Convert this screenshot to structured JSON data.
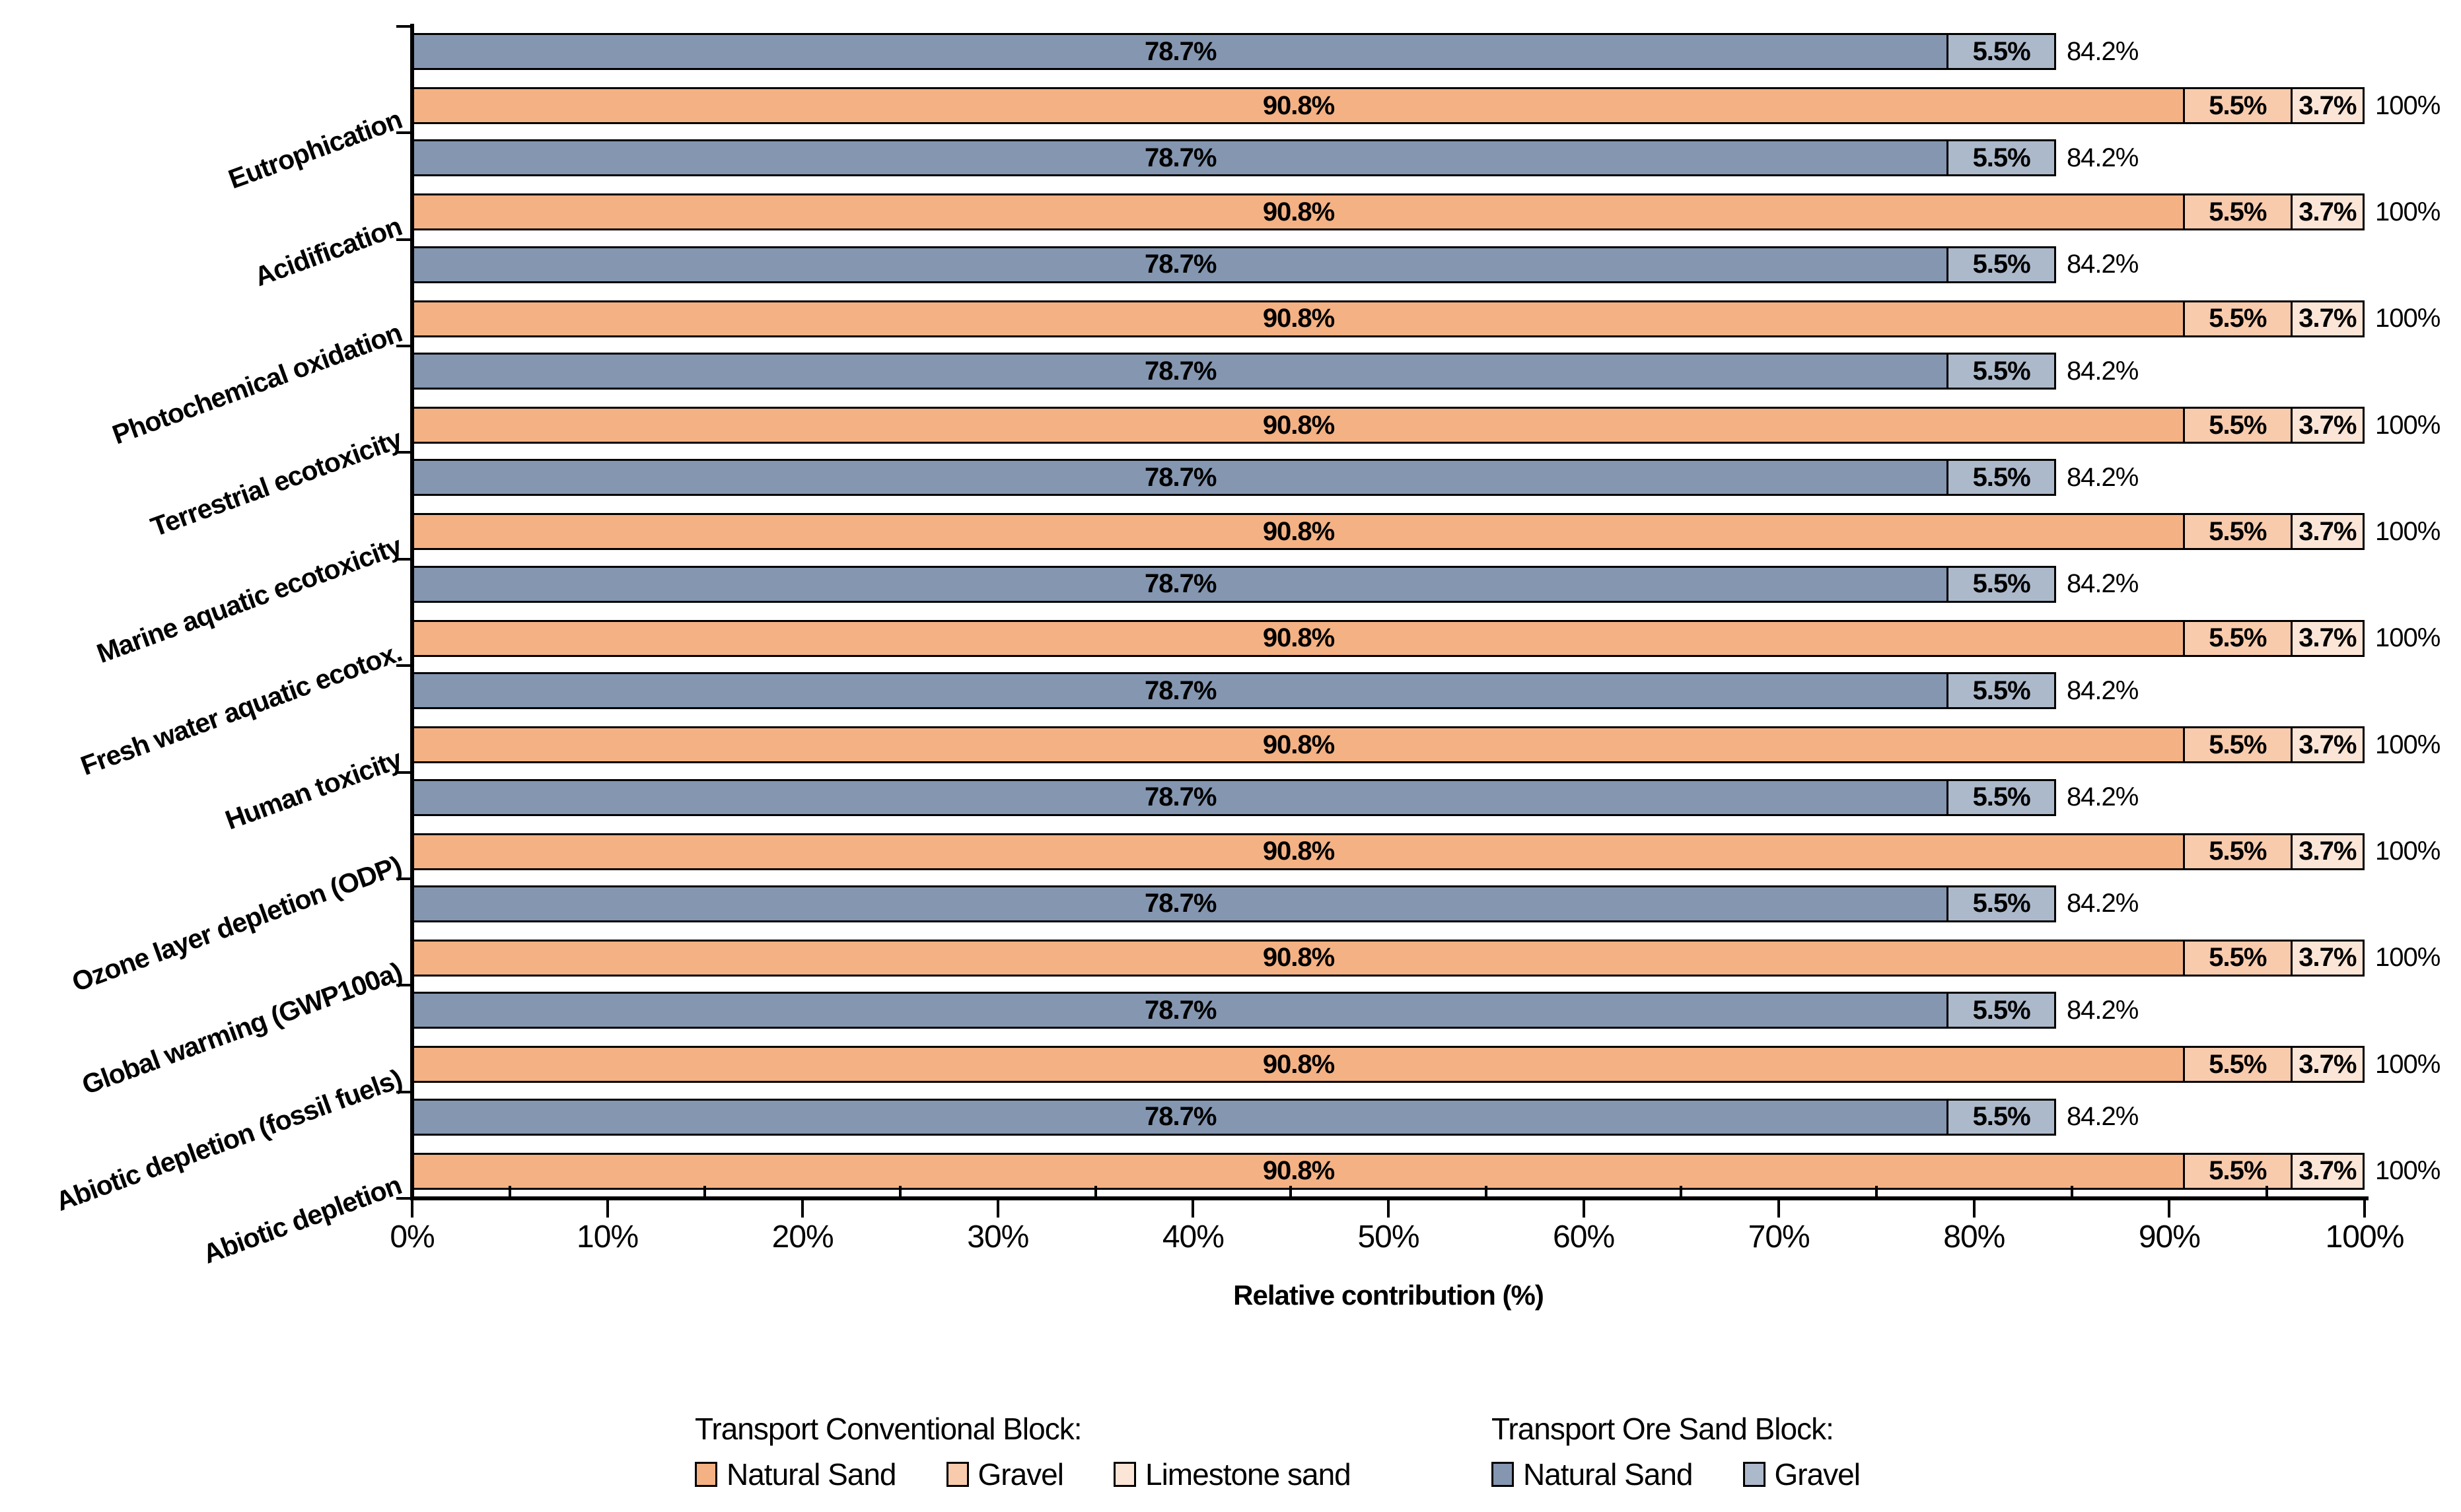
{
  "chart_data": {
    "type": "bar",
    "orientation": "horizontal",
    "stacked": true,
    "title": "",
    "xlabel": "Relative contribution (%)",
    "xlim": [
      0,
      100
    ],
    "grid": false,
    "legend_position": "bottom",
    "x_major_ticks": [
      {
        "pos": 0,
        "label": "0%"
      },
      {
        "pos": 10,
        "label": "10%"
      },
      {
        "pos": 20,
        "label": "20%"
      },
      {
        "pos": 30,
        "label": "30%"
      },
      {
        "pos": 40,
        "label": "40%"
      },
      {
        "pos": 50,
        "label": "50%"
      },
      {
        "pos": 60,
        "label": "60%"
      },
      {
        "pos": 70,
        "label": "70%"
      },
      {
        "pos": 80,
        "label": "80%"
      },
      {
        "pos": 90,
        "label": "90%"
      },
      {
        "pos": 100,
        "label": "100%"
      }
    ],
    "x_minor_ticks": [
      5,
      15,
      25,
      35,
      45,
      55,
      65,
      75,
      85,
      95
    ],
    "colors": {
      "conventional_natural_sand": "#F4B183",
      "conventional_gravel": "#F8CBAD",
      "conventional_limestone_sand": "#FBE5D6",
      "ore_sand_natural_sand": "#8496B0",
      "ore_sand_gravel": "#ACB9CA"
    },
    "categories": [
      "Eutrophication",
      "Acidification",
      "Photochemical oxidation",
      "Terrestrial ecotoxicity",
      "Marine aquatic ecotoxicity",
      "Fresh water aquatic ecotox.",
      "Human toxicity",
      "Ozone layer depletion (ODP)",
      "Global warming (GWP100a)",
      "Abiotic depletion (fossil fuels)",
      "Abiotic depletion"
    ],
    "rows": [
      {
        "category": "Eutrophication",
        "ore_sand_block": {
          "name": "Transport Ore Sand Block",
          "total": 84.2,
          "total_label": "84.2%",
          "segments": [
            {
              "name": "Natural Sand",
              "value": 78.7,
              "label": "78.7%",
              "color": "#8496B0"
            },
            {
              "name": "Gravel",
              "value": 5.5,
              "label": "5.5%",
              "color": "#ACB9CA"
            }
          ]
        },
        "conventional_block": {
          "name": "Transport Conventional Block",
          "total": 100,
          "total_label": "100%",
          "segments": [
            {
              "name": "Natural Sand",
              "value": 90.8,
              "label": "90.8%",
              "color": "#F4B183"
            },
            {
              "name": "Gravel",
              "value": 5.5,
              "label": "5.5%",
              "color": "#F8CBAD"
            },
            {
              "name": "Limestone sand",
              "value": 3.7,
              "label": "3.7%",
              "color": "#FBE5D6"
            }
          ]
        }
      },
      {
        "category": "Acidification",
        "ore_sand_block": {
          "name": "Transport Ore Sand Block",
          "total": 84.2,
          "total_label": "84.2%",
          "segments": [
            {
              "name": "Natural Sand",
              "value": 78.7,
              "label": "78.7%",
              "color": "#8496B0"
            },
            {
              "name": "Gravel",
              "value": 5.5,
              "label": "5.5%",
              "color": "#ACB9CA"
            }
          ]
        },
        "conventional_block": {
          "name": "Transport Conventional Block",
          "total": 100,
          "total_label": "100%",
          "segments": [
            {
              "name": "Natural Sand",
              "value": 90.8,
              "label": "90.8%",
              "color": "#F4B183"
            },
            {
              "name": "Gravel",
              "value": 5.5,
              "label": "5.5%",
              "color": "#F8CBAD"
            },
            {
              "name": "Limestone sand",
              "value": 3.7,
              "label": "3.7%",
              "color": "#FBE5D6"
            }
          ]
        }
      },
      {
        "category": "Photochemical oxidation",
        "ore_sand_block": {
          "name": "Transport Ore Sand Block",
          "total": 84.2,
          "total_label": "84.2%",
          "segments": [
            {
              "name": "Natural Sand",
              "value": 78.7,
              "label": "78.7%",
              "color": "#8496B0"
            },
            {
              "name": "Gravel",
              "value": 5.5,
              "label": "5.5%",
              "color": "#ACB9CA"
            }
          ]
        },
        "conventional_block": {
          "name": "Transport Conventional Block",
          "total": 100,
          "total_label": "100%",
          "segments": [
            {
              "name": "Natural Sand",
              "value": 90.8,
              "label": "90.8%",
              "color": "#F4B183"
            },
            {
              "name": "Gravel",
              "value": 5.5,
              "label": "5.5%",
              "color": "#F8CBAD"
            },
            {
              "name": "Limestone sand",
              "value": 3.7,
              "label": "3.7%",
              "color": "#FBE5D6"
            }
          ]
        }
      },
      {
        "category": "Terrestrial ecotoxicity",
        "ore_sand_block": {
          "name": "Transport Ore Sand Block",
          "total": 84.2,
          "total_label": "84.2%",
          "segments": [
            {
              "name": "Natural Sand",
              "value": 78.7,
              "label": "78.7%",
              "color": "#8496B0"
            },
            {
              "name": "Gravel",
              "value": 5.5,
              "label": "5.5%",
              "color": "#ACB9CA"
            }
          ]
        },
        "conventional_block": {
          "name": "Transport Conventional Block",
          "total": 100,
          "total_label": "100%",
          "segments": [
            {
              "name": "Natural Sand",
              "value": 90.8,
              "label": "90.8%",
              "color": "#F4B183"
            },
            {
              "name": "Gravel",
              "value": 5.5,
              "label": "5.5%",
              "color": "#F8CBAD"
            },
            {
              "name": "Limestone sand",
              "value": 3.7,
              "label": "3.7%",
              "color": "#FBE5D6"
            }
          ]
        }
      },
      {
        "category": "Marine aquatic ecotoxicity",
        "ore_sand_block": {
          "name": "Transport Ore Sand Block",
          "total": 84.2,
          "total_label": "84.2%",
          "segments": [
            {
              "name": "Natural Sand",
              "value": 78.7,
              "label": "78.7%",
              "color": "#8496B0"
            },
            {
              "name": "Gravel",
              "value": 5.5,
              "label": "5.5%",
              "color": "#ACB9CA"
            }
          ]
        },
        "conventional_block": {
          "name": "Transport Conventional Block",
          "total": 100,
          "total_label": "100%",
          "segments": [
            {
              "name": "Natural Sand",
              "value": 90.8,
              "label": "90.8%",
              "color": "#F4B183"
            },
            {
              "name": "Gravel",
              "value": 5.5,
              "label": "5.5%",
              "color": "#F8CBAD"
            },
            {
              "name": "Limestone sand",
              "value": 3.7,
              "label": "3.7%",
              "color": "#FBE5D6"
            }
          ]
        }
      },
      {
        "category": "Fresh water aquatic ecotox.",
        "ore_sand_block": {
          "name": "Transport Ore Sand Block",
          "total": 84.2,
          "total_label": "84.2%",
          "segments": [
            {
              "name": "Natural Sand",
              "value": 78.7,
              "label": "78.7%",
              "color": "#8496B0"
            },
            {
              "name": "Gravel",
              "value": 5.5,
              "label": "5.5%",
              "color": "#ACB9CA"
            }
          ]
        },
        "conventional_block": {
          "name": "Transport Conventional Block",
          "total": 100,
          "total_label": "100%",
          "segments": [
            {
              "name": "Natural Sand",
              "value": 90.8,
              "label": "90.8%",
              "color": "#F4B183"
            },
            {
              "name": "Gravel",
              "value": 5.5,
              "label": "5.5%",
              "color": "#F8CBAD"
            },
            {
              "name": "Limestone sand",
              "value": 3.7,
              "label": "3.7%",
              "color": "#FBE5D6"
            }
          ]
        }
      },
      {
        "category": "Human toxicity",
        "ore_sand_block": {
          "name": "Transport Ore Sand Block",
          "total": 84.2,
          "total_label": "84.2%",
          "segments": [
            {
              "name": "Natural Sand",
              "value": 78.7,
              "label": "78.7%",
              "color": "#8496B0"
            },
            {
              "name": "Gravel",
              "value": 5.5,
              "label": "5.5%",
              "color": "#ACB9CA"
            }
          ]
        },
        "conventional_block": {
          "name": "Transport Conventional Block",
          "total": 100,
          "total_label": "100%",
          "segments": [
            {
              "name": "Natural Sand",
              "value": 90.8,
              "label": "90.8%",
              "color": "#F4B183"
            },
            {
              "name": "Gravel",
              "value": 5.5,
              "label": "5.5%",
              "color": "#F8CBAD"
            },
            {
              "name": "Limestone sand",
              "value": 3.7,
              "label": "3.7%",
              "color": "#FBE5D6"
            }
          ]
        }
      },
      {
        "category": "Ozone layer depletion (ODP)",
        "ore_sand_block": {
          "name": "Transport Ore Sand Block",
          "total": 84.2,
          "total_label": "84.2%",
          "segments": [
            {
              "name": "Natural Sand",
              "value": 78.7,
              "label": "78.7%",
              "color": "#8496B0"
            },
            {
              "name": "Gravel",
              "value": 5.5,
              "label": "5.5%",
              "color": "#ACB9CA"
            }
          ]
        },
        "conventional_block": {
          "name": "Transport Conventional Block",
          "total": 100,
          "total_label": "100%",
          "segments": [
            {
              "name": "Natural Sand",
              "value": 90.8,
              "label": "90.8%",
              "color": "#F4B183"
            },
            {
              "name": "Gravel",
              "value": 5.5,
              "label": "5.5%",
              "color": "#F8CBAD"
            },
            {
              "name": "Limestone sand",
              "value": 3.7,
              "label": "3.7%",
              "color": "#FBE5D6"
            }
          ]
        }
      },
      {
        "category": "Global warming (GWP100a)",
        "ore_sand_block": {
          "name": "Transport Ore Sand Block",
          "total": 84.2,
          "total_label": "84.2%",
          "segments": [
            {
              "name": "Natural Sand",
              "value": 78.7,
              "label": "78.7%",
              "color": "#8496B0"
            },
            {
              "name": "Gravel",
              "value": 5.5,
              "label": "5.5%",
              "color": "#ACB9CA"
            }
          ]
        },
        "conventional_block": {
          "name": "Transport Conventional Block",
          "total": 100,
          "total_label": "100%",
          "segments": [
            {
              "name": "Natural Sand",
              "value": 90.8,
              "label": "90.8%",
              "color": "#F4B183"
            },
            {
              "name": "Gravel",
              "value": 5.5,
              "label": "5.5%",
              "color": "#F8CBAD"
            },
            {
              "name": "Limestone sand",
              "value": 3.7,
              "label": "3.7%",
              "color": "#FBE5D6"
            }
          ]
        }
      },
      {
        "category": "Abiotic depletion (fossil fuels)",
        "ore_sand_block": {
          "name": "Transport Ore Sand Block",
          "total": 84.2,
          "total_label": "84.2%",
          "segments": [
            {
              "name": "Natural Sand",
              "value": 78.7,
              "label": "78.7%",
              "color": "#8496B0"
            },
            {
              "name": "Gravel",
              "value": 5.5,
              "label": "5.5%",
              "color": "#ACB9CA"
            }
          ]
        },
        "conventional_block": {
          "name": "Transport Conventional Block",
          "total": 100,
          "total_label": "100%",
          "segments": [
            {
              "name": "Natural Sand",
              "value": 90.8,
              "label": "90.8%",
              "color": "#F4B183"
            },
            {
              "name": "Gravel",
              "value": 5.5,
              "label": "5.5%",
              "color": "#F8CBAD"
            },
            {
              "name": "Limestone sand",
              "value": 3.7,
              "label": "3.7%",
              "color": "#FBE5D6"
            }
          ]
        }
      },
      {
        "category": "Abiotic depletion",
        "ore_sand_block": {
          "name": "Transport Ore Sand Block",
          "total": 84.2,
          "total_label": "84.2%",
          "segments": [
            {
              "name": "Natural Sand",
              "value": 78.7,
              "label": "78.7%",
              "color": "#8496B0"
            },
            {
              "name": "Gravel",
              "value": 5.5,
              "label": "5.5%",
              "color": "#ACB9CA"
            }
          ]
        },
        "conventional_block": {
          "name": "Transport Conventional Block",
          "total": 100,
          "total_label": "100%",
          "segments": [
            {
              "name": "Natural Sand",
              "value": 90.8,
              "label": "90.8%",
              "color": "#F4B183"
            },
            {
              "name": "Gravel",
              "value": 5.5,
              "label": "5.5%",
              "color": "#F8CBAD"
            },
            {
              "name": "Limestone sand",
              "value": 3.7,
              "label": "3.7%",
              "color": "#FBE5D6"
            }
          ]
        }
      }
    ],
    "legend": {
      "groups": [
        {
          "title": "Transport Conventional Block:",
          "items": [
            {
              "label": "Natural Sand",
              "color": "#F4B183"
            },
            {
              "label": "Gravel",
              "color": "#F8CBAD"
            },
            {
              "label": "Limestone sand",
              "color": "#FBE5D6"
            }
          ]
        },
        {
          "title": "Transport Ore Sand Block:",
          "items": [
            {
              "label": "Natural Sand",
              "color": "#8496B0"
            },
            {
              "label": "Gravel",
              "color": "#ACB9CA"
            }
          ]
        }
      ]
    }
  }
}
